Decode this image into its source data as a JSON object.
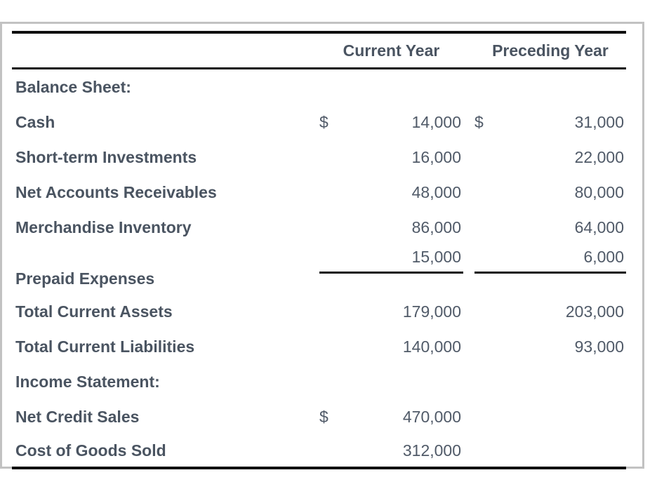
{
  "header": {
    "current_year_label": "Current Year",
    "preceding_year_label": "Preceding Year"
  },
  "colors": {
    "label_text": "#4a5461",
    "number_text": "#505a68",
    "rule_black": "#101010",
    "frame_border": "#c2c2c2",
    "background": "#ffffff"
  },
  "rows": [
    {
      "label": "Balance Sheet:"
    },
    {
      "label": "Cash",
      "cy_currency": "$",
      "cy_value": "14,000",
      "py_currency": "$",
      "py_value": "31,000"
    },
    {
      "label": "Short-term Investments",
      "cy_value": "16,000",
      "py_value": "22,000"
    },
    {
      "label": "Net Accounts Receivables",
      "cy_value": "48,000",
      "py_value": "80,000"
    },
    {
      "label": "Merchandise Inventory",
      "cy_value": "86,000",
      "py_value": "64,000"
    },
    {
      "label": "Prepaid Expenses",
      "cy_value": "15,000",
      "py_value": "6,000"
    },
    {
      "label": "Total Current Assets",
      "cy_value": "179,000",
      "py_value": "203,000"
    },
    {
      "label": "Total Current Liabilities",
      "cy_value": "140,000",
      "py_value": "93,000"
    },
    {
      "label": "Income Statement:"
    },
    {
      "label": "Net Credit Sales",
      "cy_currency": "$",
      "cy_value": "470,000"
    },
    {
      "label": "Cost of Goods Sold",
      "cy_value": "312,000"
    }
  ]
}
